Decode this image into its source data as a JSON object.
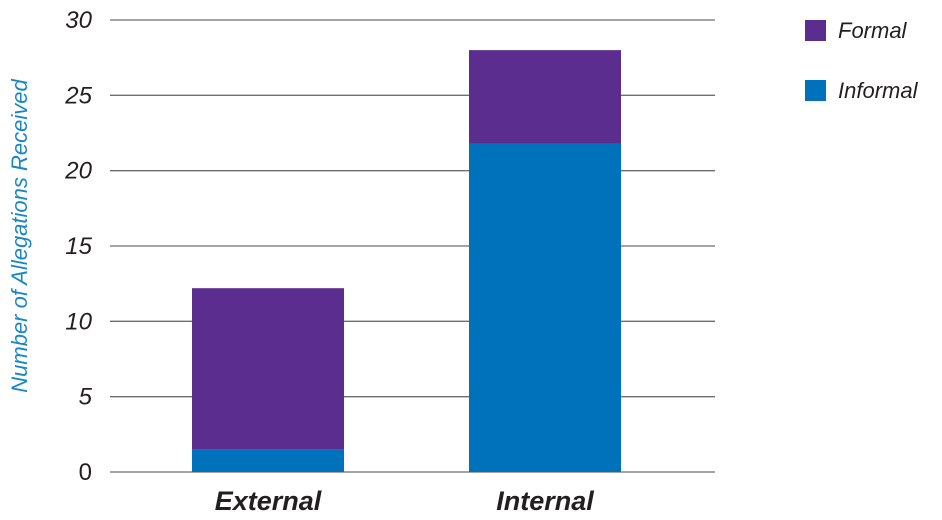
{
  "chart_data": {
    "type": "bar",
    "stacked": true,
    "categories": [
      "External",
      "Internal"
    ],
    "series": [
      {
        "name": "Informal",
        "color": "#0072bc",
        "values": [
          1.5,
          21.8
        ]
      },
      {
        "name": "Formal",
        "color": "#5b2d8e",
        "values": [
          10.7,
          6.2
        ]
      }
    ],
    "ylabel": "Number of Allegations Received",
    "xlabel": "",
    "ylim": [
      0,
      30
    ],
    "yticks": [
      0,
      5,
      10,
      15,
      20,
      25,
      30
    ],
    "grid": true,
    "legend": {
      "placement": "top-right",
      "order": [
        "Formal",
        "Informal"
      ]
    }
  }
}
